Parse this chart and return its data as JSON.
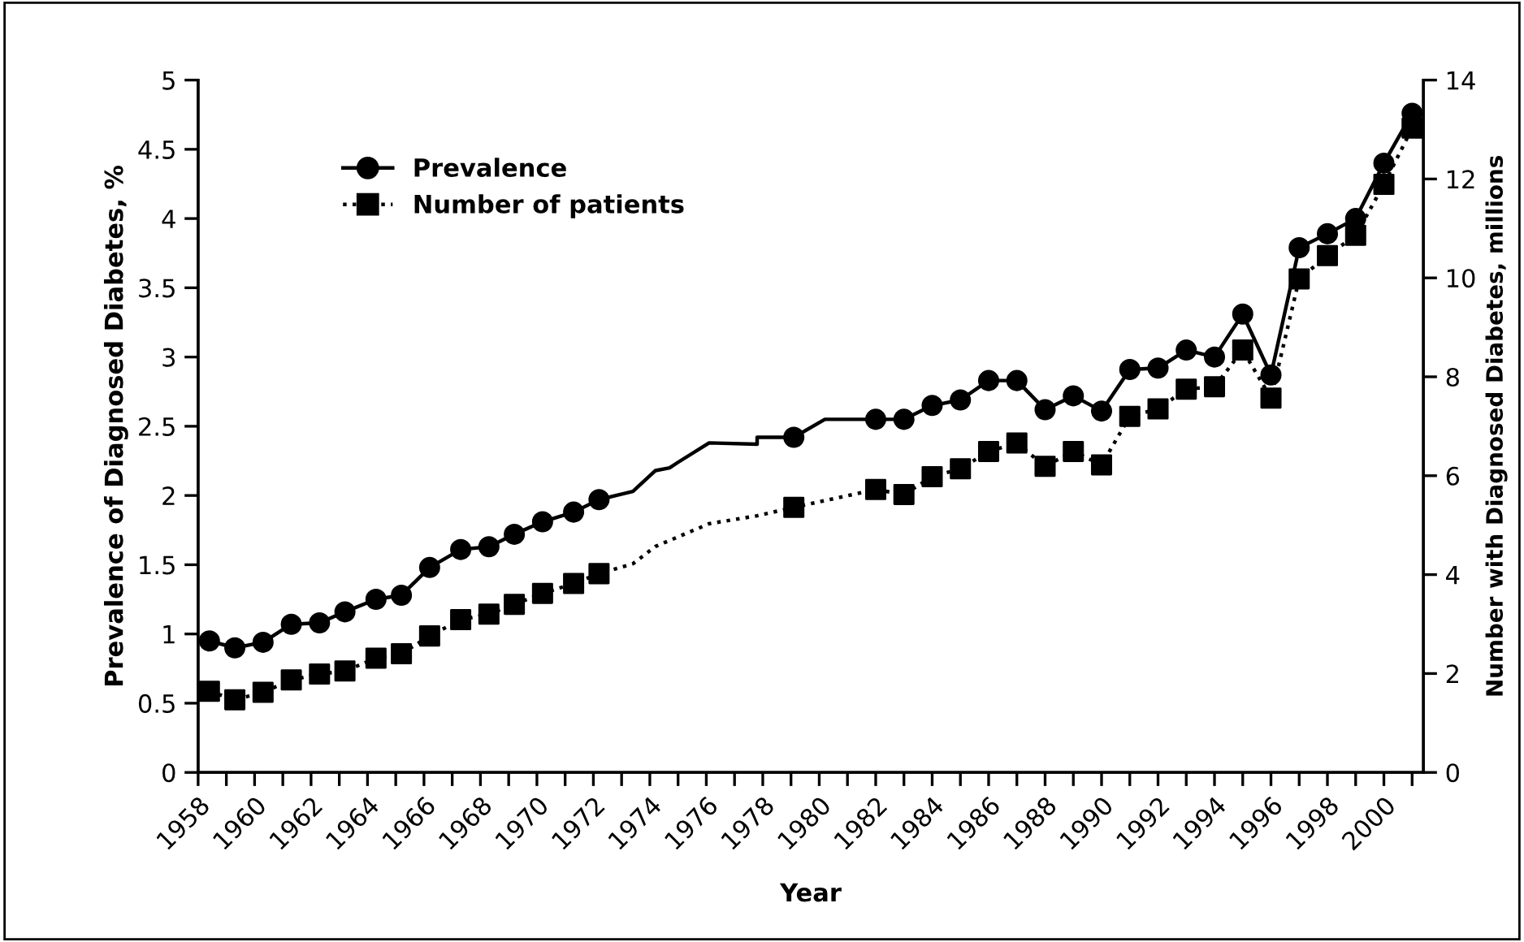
{
  "chart_data": {
    "type": "line",
    "xlabel": "Year",
    "ylabel": "Prevalence of Diagnosed Diabetes, %",
    "y2label": "Number with Diagnosed Diabetes, millions",
    "xlim": [
      1958,
      2001.4
    ],
    "xticks": [
      {
        "value": 1958,
        "label": "1958"
      },
      {
        "value": 1959,
        "label": null
      },
      {
        "value": 1960,
        "label": "1960"
      },
      {
        "value": 1961,
        "label": null
      },
      {
        "value": 1962,
        "label": "1962"
      },
      {
        "value": 1963,
        "label": null
      },
      {
        "value": 1964,
        "label": "1964"
      },
      {
        "value": 1965,
        "label": null
      },
      {
        "value": 1966,
        "label": "1966"
      },
      {
        "value": 1967,
        "label": null
      },
      {
        "value": 1968,
        "label": "1968"
      },
      {
        "value": 1969,
        "label": null
      },
      {
        "value": 1970,
        "label": "1970"
      },
      {
        "value": 1971,
        "label": null
      },
      {
        "value": 1972,
        "label": "1972"
      },
      {
        "value": 1973,
        "label": null
      },
      {
        "value": 1974,
        "label": "1974"
      },
      {
        "value": 1975,
        "label": null
      },
      {
        "value": 1976,
        "label": "1976"
      },
      {
        "value": 1977,
        "label": null
      },
      {
        "value": 1978,
        "label": "1978"
      },
      {
        "value": 1979,
        "label": null
      },
      {
        "value": 1980,
        "label": "1980"
      },
      {
        "value": 1981,
        "label": null
      },
      {
        "value": 1982,
        "label": "1982"
      },
      {
        "value": 1983,
        "label": null
      },
      {
        "value": 1984,
        "label": "1984"
      },
      {
        "value": 1985,
        "label": null
      },
      {
        "value": 1986,
        "label": "1986"
      },
      {
        "value": 1987,
        "label": null
      },
      {
        "value": 1988,
        "label": "1988"
      },
      {
        "value": 1989,
        "label": null
      },
      {
        "value": 1990,
        "label": "1990"
      },
      {
        "value": 1991,
        "label": null
      },
      {
        "value": 1992,
        "label": "1992"
      },
      {
        "value": 1993,
        "label": null
      },
      {
        "value": 1994,
        "label": "1994"
      },
      {
        "value": 1995,
        "label": null
      },
      {
        "value": 1996,
        "label": "1996"
      },
      {
        "value": 1997,
        "label": null
      },
      {
        "value": 1998,
        "label": "1998"
      },
      {
        "value": 1999,
        "label": null
      },
      {
        "value": 2000,
        "label": "2000"
      },
      {
        "value": 2001,
        "label": null
      }
    ],
    "ylim": [
      0,
      5
    ],
    "yticks": [
      0,
      0.5,
      1,
      1.5,
      2,
      2.5,
      3,
      3.5,
      4,
      4.5,
      5
    ],
    "y2lim": [
      0,
      14
    ],
    "y2ticks": [
      0,
      2,
      4,
      6,
      8,
      10,
      12,
      14
    ],
    "legend": "top left",
    "grid": false,
    "series": [
      {
        "color": "#000000",
        "marker": "none",
        "line_style": "solid",
        "x": [
          1958.4,
          1959.3,
          1960.3,
          1961.3,
          1962.3,
          1963.2,
          1964.3,
          1965.2,
          1966.2,
          1967.3,
          1968.3,
          1969.2,
          1970.2,
          1971.3,
          1972.2,
          1973.4,
          1974.2,
          1974.7,
          1975.0,
          1976.1,
          1977.8,
          1977.8,
          1979.1,
          1980.2,
          1982,
          1983,
          1984,
          1985,
          1986,
          1987,
          1988,
          1989,
          1990,
          1991,
          1992,
          1993,
          1994,
          1995,
          1996,
          1997,
          1998,
          1999,
          2000,
          2001
        ],
        "values": [
          0.95,
          0.9,
          0.94,
          1.07,
          1.08,
          1.16,
          1.25,
          1.28,
          1.48,
          1.61,
          1.63,
          1.72,
          1.81,
          1.88,
          1.97,
          2.03,
          2.18,
          2.2,
          2.24,
          2.38,
          2.37,
          2.42,
          2.42,
          2.55,
          2.55,
          2.55,
          2.65,
          2.69,
          2.83,
          2.83,
          2.62,
          2.72,
          2.61,
          2.91,
          2.92,
          3.05,
          3.0,
          3.31,
          2.87,
          3.79,
          3.89,
          4.0,
          4.4,
          4.76
        ]
      },
      {
        "color": "#000000",
        "marker": "none",
        "line_style": "dotted",
        "axis": "y2",
        "x": [
          1958.4,
          1959.3,
          1960.3,
          1961.3,
          1962.3,
          1963.2,
          1964.3,
          1965.2,
          1966.2,
          1967.3,
          1968.3,
          1969.2,
          1970.2,
          1971.3,
          1972.2,
          1973.4,
          1974.2,
          1976.1,
          1977.8,
          1979.1,
          1982,
          1983,
          1984,
          1985,
          1986,
          1987,
          1988,
          1989,
          1990,
          1991,
          1992,
          1993,
          1994,
          1995,
          1996,
          1997,
          1998,
          1999,
          2000,
          2001
        ],
        "values": [
          1.64,
          1.47,
          1.62,
          1.87,
          1.99,
          2.05,
          2.31,
          2.4,
          2.76,
          3.09,
          3.2,
          3.4,
          3.62,
          3.82,
          4.02,
          4.22,
          4.57,
          5.03,
          5.19,
          5.36,
          5.72,
          5.62,
          5.98,
          6.14,
          6.49,
          6.66,
          6.19,
          6.49,
          6.22,
          7.2,
          7.35,
          7.75,
          7.8,
          8.54,
          7.57,
          9.98,
          10.45,
          10.86,
          11.89,
          13.03
        ]
      },
      {
        "type": "scatter",
        "name": "Prevalence",
        "color": "#000000",
        "marker": "circle",
        "line_style": "solid",
        "x": [
          1958.4,
          1959.3,
          1960.3,
          1961.3,
          1962.3,
          1963.2,
          1964.3,
          1965.2,
          1966.2,
          1967.3,
          1968.3,
          1969.2,
          1970.2,
          1971.3,
          1972.2,
          1979.1,
          1982,
          1983,
          1984,
          1985,
          1986,
          1987,
          1988,
          1989,
          1990,
          1991,
          1992,
          1993,
          1994,
          1995,
          1996,
          1997,
          1998,
          1999,
          2000,
          2001
        ],
        "values": [
          0.95,
          0.9,
          0.94,
          1.07,
          1.08,
          1.16,
          1.25,
          1.28,
          1.48,
          1.61,
          1.63,
          1.72,
          1.81,
          1.88,
          1.97,
          2.42,
          2.55,
          2.55,
          2.65,
          2.69,
          2.83,
          2.83,
          2.62,
          2.72,
          2.61,
          2.91,
          2.92,
          3.05,
          3.0,
          3.31,
          2.87,
          3.79,
          3.89,
          4.0,
          4.4,
          4.76
        ]
      },
      {
        "type": "scatter",
        "name": "Number of patients",
        "color": "#000000",
        "marker": "square",
        "line_style": "dotted",
        "axis": "y2",
        "x": [
          1958.4,
          1959.3,
          1960.3,
          1961.3,
          1962.3,
          1963.2,
          1964.3,
          1965.2,
          1966.2,
          1967.3,
          1968.3,
          1969.2,
          1970.2,
          1971.3,
          1972.2,
          1979.1,
          1982,
          1983,
          1984,
          1985,
          1986,
          1987,
          1988,
          1989,
          1990,
          1991,
          1992,
          1993,
          1994,
          1995,
          1996,
          1997,
          1998,
          1999,
          2000,
          2001
        ],
        "values": [
          1.64,
          1.47,
          1.62,
          1.87,
          1.99,
          2.05,
          2.31,
          2.4,
          2.76,
          3.09,
          3.2,
          3.4,
          3.62,
          3.82,
          4.02,
          5.36,
          5.72,
          5.62,
          5.98,
          6.14,
          6.49,
          6.66,
          6.19,
          6.49,
          6.22,
          7.2,
          7.35,
          7.75,
          7.8,
          8.54,
          7.57,
          9.98,
          10.45,
          10.86,
          11.89,
          13.03
        ]
      }
    ]
  }
}
